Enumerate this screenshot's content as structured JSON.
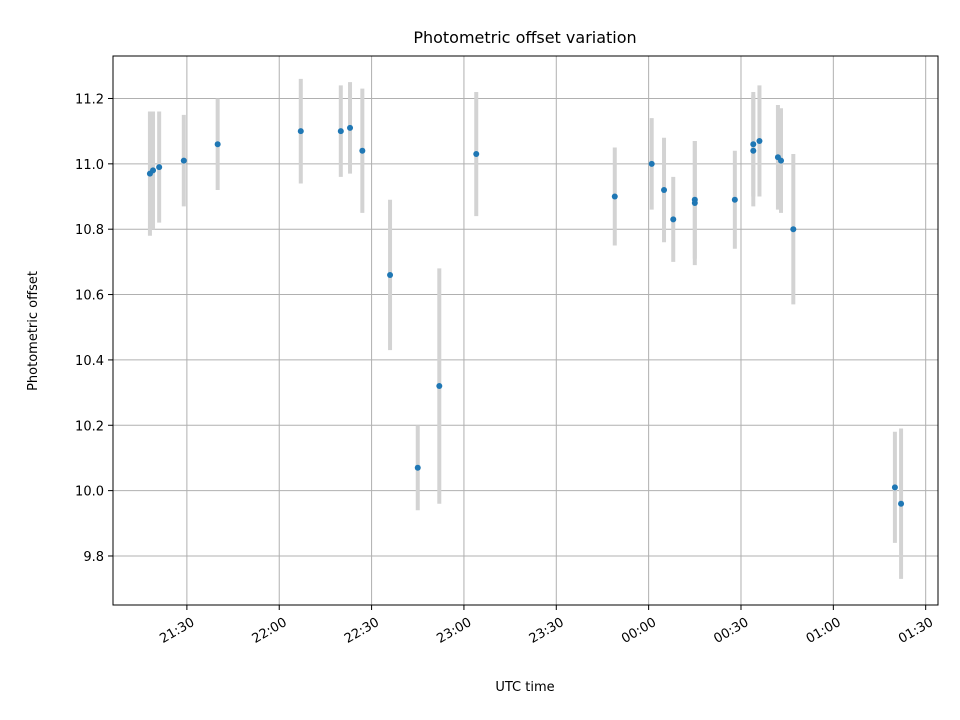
{
  "chart_data": {
    "type": "scatter",
    "title": "Photometric offset variation",
    "xlabel": "UTC time",
    "ylabel": "Photometric offset",
    "grid": true,
    "x_ticks": [
      "21:30",
      "22:00",
      "22:30",
      "23:00",
      "23:30",
      "00:00",
      "00:30",
      "01:00",
      "01:30"
    ],
    "y_ticks": [
      "9.8",
      "10.0",
      "10.2",
      "10.4",
      "10.6",
      "10.8",
      "11.0",
      "11.2"
    ],
    "xlim": [
      "21:06",
      "01:34"
    ],
    "ylim": [
      9.65,
      11.33
    ],
    "colors": {
      "point": "#1f77b4",
      "errorbar": "#d3d3d3",
      "grid": "#b0b0b0"
    },
    "points": [
      {
        "x": "21:18",
        "y": 10.97,
        "err": 0.19
      },
      {
        "x": "21:19",
        "y": 10.98,
        "err": 0.18
      },
      {
        "x": "21:21",
        "y": 10.99,
        "err": 0.17
      },
      {
        "x": "21:29",
        "y": 11.01,
        "err": 0.14
      },
      {
        "x": "21:40",
        "y": 11.06,
        "err": 0.14
      },
      {
        "x": "22:07",
        "y": 11.1,
        "err": 0.16
      },
      {
        "x": "22:20",
        "y": 11.1,
        "err": 0.14
      },
      {
        "x": "22:23",
        "y": 11.11,
        "err": 0.14
      },
      {
        "x": "22:27",
        "y": 11.04,
        "err": 0.19
      },
      {
        "x": "22:36",
        "y": 10.66,
        "err": 0.23
      },
      {
        "x": "22:45",
        "y": 10.07,
        "err": 0.13
      },
      {
        "x": "22:52",
        "y": 10.32,
        "err": 0.36
      },
      {
        "x": "23:04",
        "y": 11.03,
        "err": 0.19
      },
      {
        "x": "23:49",
        "y": 10.9,
        "err": 0.15
      },
      {
        "x": "00:01",
        "y": 11.0,
        "err": 0.14
      },
      {
        "x": "00:05",
        "y": 10.92,
        "err": 0.16
      },
      {
        "x": "00:08",
        "y": 10.83,
        "err": 0.13
      },
      {
        "x": "00:15",
        "y": 10.88,
        "err": 0.19
      },
      {
        "x": "00:15",
        "y": 10.89,
        "err": 0.18
      },
      {
        "x": "00:28",
        "y": 10.89,
        "err": 0.15
      },
      {
        "x": "00:34",
        "y": 11.04,
        "err": 0.17
      },
      {
        "x": "00:34",
        "y": 11.06,
        "err": 0.16
      },
      {
        "x": "00:36",
        "y": 11.07,
        "err": 0.17
      },
      {
        "x": "00:42",
        "y": 11.02,
        "err": 0.16
      },
      {
        "x": "00:43",
        "y": 11.01,
        "err": 0.16
      },
      {
        "x": "00:47",
        "y": 10.8,
        "err": 0.23
      },
      {
        "x": "01:20",
        "y": 10.01,
        "err": 0.17
      },
      {
        "x": "01:22",
        "y": 9.96,
        "err": 0.23
      }
    ]
  }
}
